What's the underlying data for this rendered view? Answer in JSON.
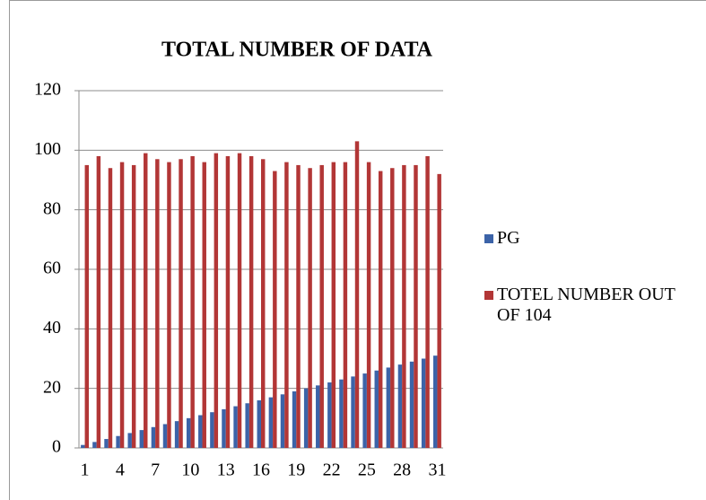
{
  "chart_data": {
    "type": "bar",
    "title": "TOTAL NUMBER OF DATA",
    "categories": [
      "1",
      null,
      null,
      "4",
      null,
      null,
      "7",
      null,
      null,
      "10",
      null,
      null,
      "13",
      null,
      null,
      "16",
      null,
      null,
      "19",
      null,
      null,
      "22",
      null,
      null,
      "25",
      null,
      null,
      "28",
      null,
      null,
      "31"
    ],
    "series": [
      {
        "name": "PG",
        "color": "#3c63a8",
        "values": [
          1,
          2,
          3,
          4,
          5,
          6,
          7,
          8,
          9,
          10,
          11,
          12,
          13,
          14,
          15,
          16,
          17,
          18,
          19,
          20,
          21,
          22,
          23,
          24,
          25,
          26,
          27,
          28,
          29,
          30,
          31
        ]
      },
      {
        "name": "TOTEL NUMBER OUT OF 104",
        "color": "#b23636",
        "values": [
          95,
          98,
          94,
          96,
          95,
          99,
          97,
          96,
          97,
          98,
          96,
          99,
          98,
          99,
          98,
          97,
          93,
          96,
          95,
          94,
          95,
          96,
          96,
          103,
          96,
          93,
          94,
          95,
          95,
          98,
          92
        ]
      }
    ],
    "ylim": [
      0,
      120
    ],
    "yticks": [
      0,
      20,
      40,
      60,
      80,
      100,
      120
    ],
    "grid": true,
    "legend": "right"
  }
}
